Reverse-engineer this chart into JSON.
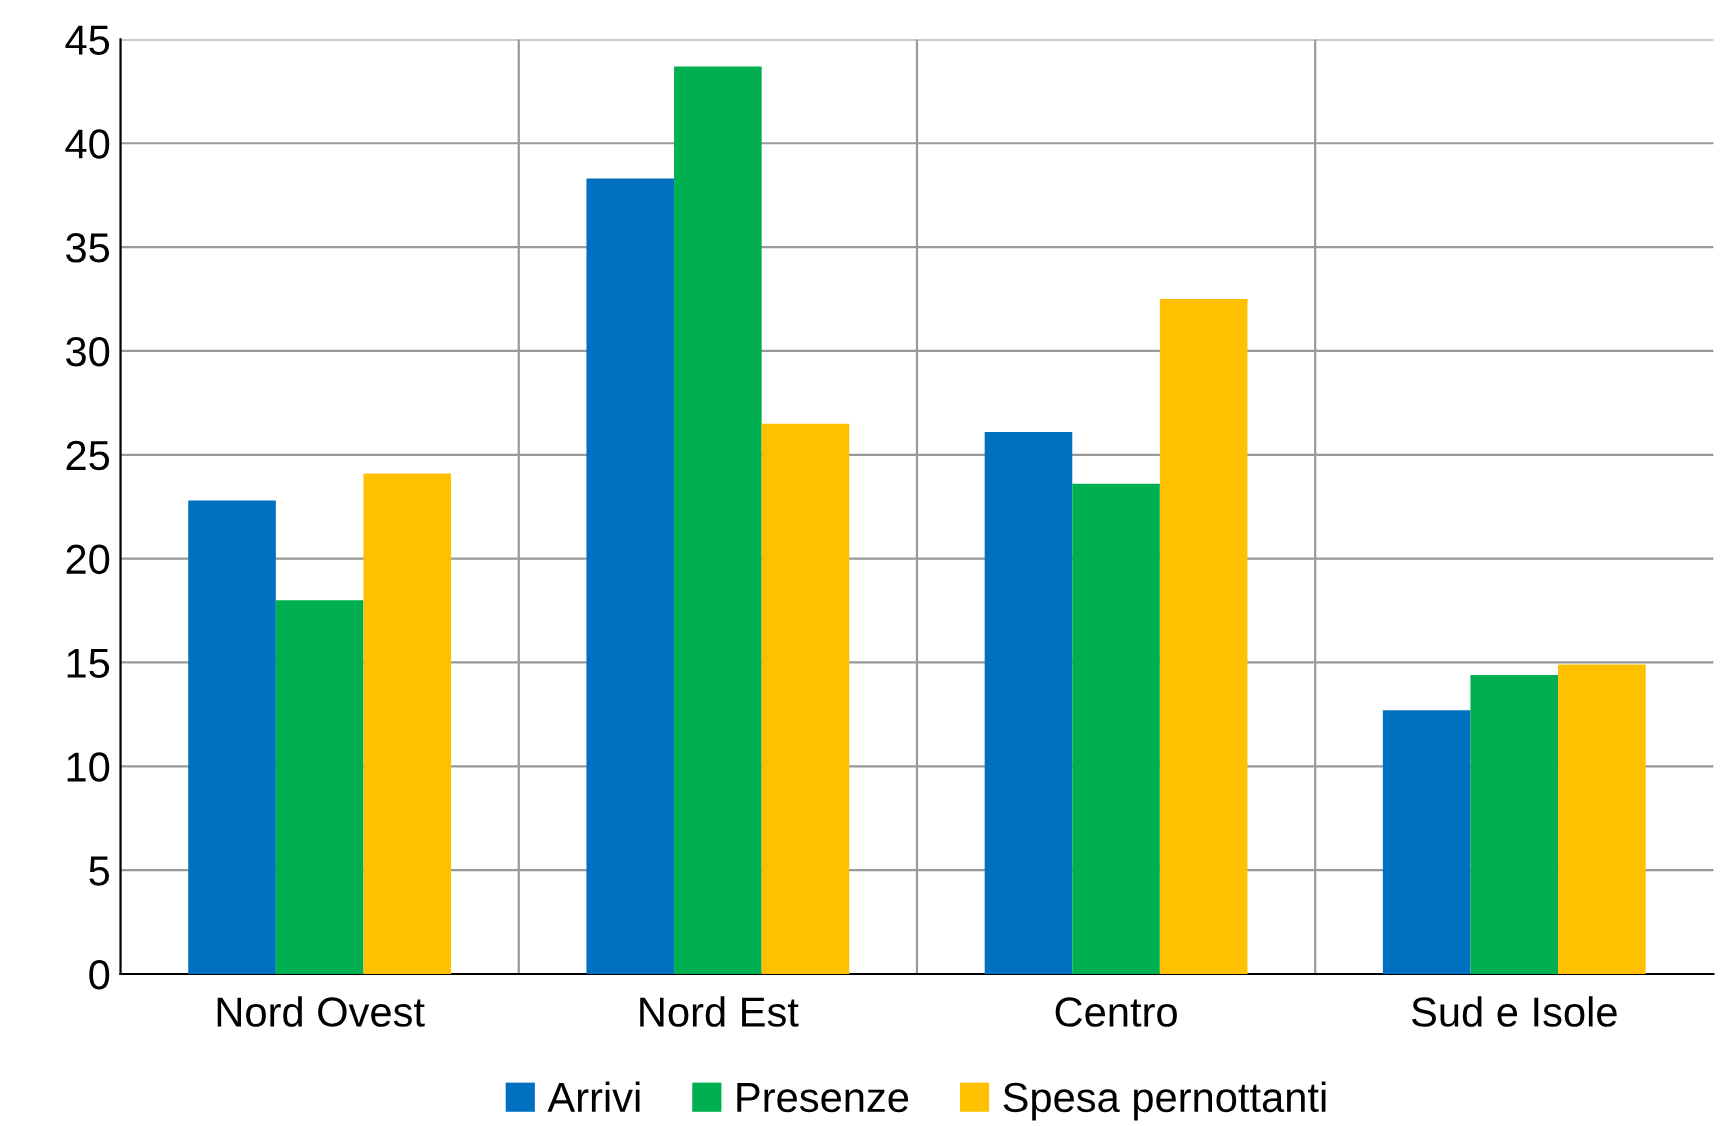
{
  "chart_data": {
    "type": "bar",
    "categories": [
      "Nord Ovest",
      "Nord Est",
      "Centro",
      "Sud e Isole"
    ],
    "series": [
      {
        "name": "Arrivi",
        "color": "#0070c0",
        "values": [
          22.8,
          38.3,
          26.1,
          12.7
        ]
      },
      {
        "name": "Presenze",
        "color": "#00b050",
        "values": [
          18.0,
          43.7,
          23.6,
          14.4
        ]
      },
      {
        "name": "Spesa pernottanti",
        "color": "#ffc000",
        "values": [
          24.1,
          26.5,
          32.5,
          14.9
        ]
      }
    ],
    "ylim": [
      0,
      45
    ],
    "yticks": [
      0,
      5,
      10,
      15,
      20,
      25,
      30,
      35,
      40,
      45
    ],
    "grid": true,
    "legend": "bottom"
  }
}
